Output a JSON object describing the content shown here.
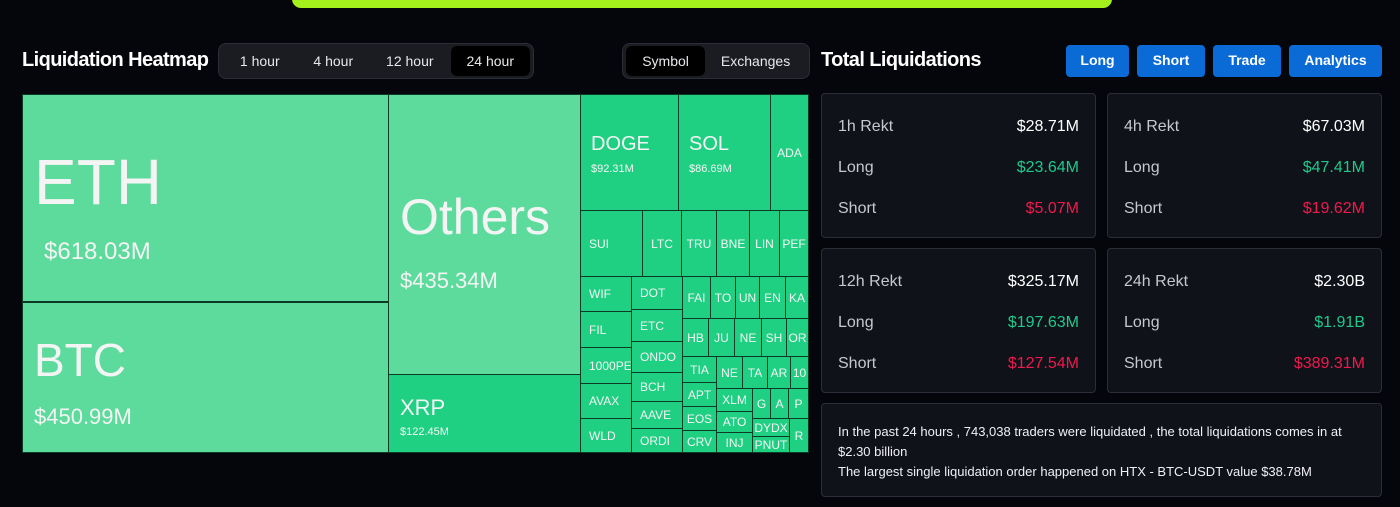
{
  "heatmap": {
    "title": "Liquidation Heatmap",
    "time_options": [
      "1 hour",
      "4 hour",
      "12 hour",
      "24 hour"
    ],
    "time_selected": "24 hour",
    "view_options": [
      "Symbol",
      "Exchanges"
    ],
    "view_selected": "Symbol",
    "tiles": {
      "eth": {
        "symbol": "ETH",
        "value": "$618.03M"
      },
      "btc": {
        "symbol": "BTC",
        "value": "$450.99M"
      },
      "others": {
        "symbol": "Others",
        "value": "$435.34M"
      },
      "xrp": {
        "symbol": "XRP",
        "value": "$122.45M"
      },
      "doge": {
        "symbol": "DOGE",
        "value": "$92.31M"
      },
      "sol": {
        "symbol": "SOL",
        "value": "$86.69M"
      },
      "ada": {
        "symbol": "ADA"
      },
      "sui": {
        "symbol": "SUI"
      },
      "ltc": {
        "symbol": "LTC"
      },
      "tru": {
        "symbol": "TRU"
      },
      "bne": {
        "symbol": "BNE"
      },
      "lin": {
        "symbol": "LIN"
      },
      "pe": {
        "symbol": "PEF"
      },
      "wif": {
        "symbol": "WIF"
      },
      "dot": {
        "symbol": "DOT"
      },
      "fil": {
        "symbol": "FIL"
      },
      "etc": {
        "symbol": "ETC"
      },
      "pepe1000": {
        "symbol": "1000PE"
      },
      "ondo": {
        "symbol": "ONDO"
      },
      "bch": {
        "symbol": "BCH"
      },
      "avax": {
        "symbol": "AVAX"
      },
      "aave": {
        "symbol": "AAVE"
      },
      "wld": {
        "symbol": "WLD"
      },
      "ordi": {
        "symbol": "ORDI"
      },
      "fa": {
        "symbol": "FAI"
      },
      "to": {
        "symbol": "TO"
      },
      "un": {
        "symbol": "UN"
      },
      "en": {
        "symbol": "EN"
      },
      "ka": {
        "symbol": "KA"
      },
      "hb": {
        "symbol": "HB"
      },
      "ju": {
        "symbol": "JU"
      },
      "ne": {
        "symbol": "NE"
      },
      "sh": {
        "symbol": "SH"
      },
      "or": {
        "symbol": "OR"
      },
      "tia": {
        "symbol": "TIA"
      },
      "ne2": {
        "symbol": "NE"
      },
      "ta": {
        "symbol": "TA"
      },
      "ar": {
        "symbol": "AR"
      },
      "n10": {
        "symbol": "10"
      },
      "apt": {
        "symbol": "APT"
      },
      "xlm": {
        "symbol": "XLM"
      },
      "g": {
        "symbol": "G"
      },
      "a": {
        "symbol": "A"
      },
      "p": {
        "symbol": "P"
      },
      "eos": {
        "symbol": "EOS"
      },
      "ato": {
        "symbol": "ATO"
      },
      "crv": {
        "symbol": "CRV"
      },
      "inj": {
        "symbol": "INJ"
      },
      "dydx": {
        "symbol": "DYDX"
      },
      "pnut": {
        "symbol": "PNUT"
      },
      "r": {
        "symbol": "R"
      }
    }
  },
  "total": {
    "title": "Total Liquidations",
    "buttons": [
      "Long",
      "Short",
      "Trade",
      "Analytics"
    ],
    "cards": [
      {
        "label": "1h Rekt",
        "total": "$28.71M",
        "long_label": "Long",
        "long": "$23.64M",
        "short_label": "Short",
        "short": "$5.07M"
      },
      {
        "label": "4h Rekt",
        "total": "$67.03M",
        "long_label": "Long",
        "long": "$47.41M",
        "short_label": "Short",
        "short": "$19.62M"
      },
      {
        "label": "12h Rekt",
        "total": "$325.17M",
        "long_label": "Long",
        "long": "$197.63M",
        "short_label": "Short",
        "short": "$127.54M"
      },
      {
        "label": "24h Rekt",
        "total": "$2.30B",
        "long_label": "Long",
        "long": "$1.91B",
        "short_label": "Short",
        "short": "$389.31M"
      }
    ],
    "summary_line1": "In the past 24 hours , 743,038 traders were liquidated , the total liquidations comes in at $2.30 billion",
    "summary_line2": "The largest single liquidation order happened on HTX - BTC-USDT value $38.78M"
  },
  "colors": {
    "accent_bar": "#a3f01c",
    "button_blue": "#0b6bd6",
    "long_green": "#1fc98a",
    "short_red": "#f0194d",
    "tile_light": "#5ddb9d",
    "tile_green": "#1fd083"
  }
}
